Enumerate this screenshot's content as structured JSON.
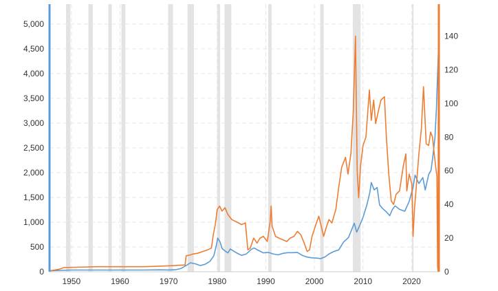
{
  "chart_data": {
    "type": "line",
    "title": "",
    "xlabel": "",
    "ylabel_left": "",
    "ylabel_right": "",
    "xlim": [
      1945.5,
      2025.6
    ],
    "ylim_left": [
      0,
      5400
    ],
    "ylim_right": [
      0,
      159
    ],
    "grid": true,
    "legend": "none",
    "x_ticks": [
      {
        "value": 1950,
        "label": "1950"
      },
      {
        "value": 1960,
        "label": "1960"
      },
      {
        "value": 1970,
        "label": "1970"
      },
      {
        "value": 1980,
        "label": "1980"
      },
      {
        "value": 1990,
        "label": "1990"
      },
      {
        "value": 2000,
        "label": "2000"
      },
      {
        "value": 2010,
        "label": "2010"
      },
      {
        "value": 2020,
        "label": "2020"
      }
    ],
    "y_left_ticks": [
      {
        "value": 0,
        "label": "0"
      },
      {
        "value": 500,
        "label": "500"
      },
      {
        "value": 1000,
        "label": "1,000"
      },
      {
        "value": 1500,
        "label": "1,500"
      },
      {
        "value": 2000,
        "label": "2,000"
      },
      {
        "value": 2500,
        "label": "2,500"
      },
      {
        "value": 3000,
        "label": "3,000"
      },
      {
        "value": 3500,
        "label": "3,500"
      },
      {
        "value": 4000,
        "label": "4,000"
      },
      {
        "value": 4500,
        "label": "4,500"
      },
      {
        "value": 5000,
        "label": "5,000"
      }
    ],
    "y_right_ticks": [
      {
        "value": 0,
        "label": "0"
      },
      {
        "value": 20,
        "label": "20"
      },
      {
        "value": 40,
        "label": "40"
      },
      {
        "value": 60,
        "label": "60"
      },
      {
        "value": 80,
        "label": "80"
      },
      {
        "value": 100,
        "label": "100"
      },
      {
        "value": 120,
        "label": "120"
      },
      {
        "value": 140,
        "label": "140"
      }
    ],
    "recessions": [
      [
        1948.9,
        1949.8
      ],
      [
        1953.5,
        1954.4
      ],
      [
        1957.6,
        1958.3
      ],
      [
        1960.3,
        1961.1
      ],
      [
        1969.9,
        1970.9
      ],
      [
        1973.9,
        1975.2
      ],
      [
        1980.0,
        1980.6
      ],
      [
        1981.5,
        1982.9
      ],
      [
        1990.5,
        1991.2
      ],
      [
        2001.2,
        2001.9
      ],
      [
        2007.9,
        2009.5
      ],
      [
        2020.1,
        2020.4
      ]
    ],
    "series": [
      {
        "axis": "left",
        "color": "#5b9bd5",
        "points": [
          [
            1945.5,
            20
          ],
          [
            1950,
            35
          ],
          [
            1955,
            35
          ],
          [
            1960,
            35
          ],
          [
            1965,
            35
          ],
          [
            1968,
            39
          ],
          [
            1970,
            36
          ],
          [
            1971.5,
            42
          ],
          [
            1972.5,
            64
          ],
          [
            1973.5,
            120
          ],
          [
            1974.5,
            180
          ],
          [
            1975.5,
            160
          ],
          [
            1976.5,
            125
          ],
          [
            1977.5,
            150
          ],
          [
            1978.5,
            210
          ],
          [
            1979.3,
            320
          ],
          [
            1979.8,
            520
          ],
          [
            1980.1,
            680
          ],
          [
            1980.6,
            600
          ],
          [
            1981,
            470
          ],
          [
            1981.6,
            420
          ],
          [
            1982.2,
            380
          ],
          [
            1982.7,
            460
          ],
          [
            1983.3,
            420
          ],
          [
            1984,
            380
          ],
          [
            1985,
            330
          ],
          [
            1986,
            360
          ],
          [
            1987,
            450
          ],
          [
            1987.6,
            480
          ],
          [
            1988.5,
            430
          ],
          [
            1989.5,
            380
          ],
          [
            1990.5,
            390
          ],
          [
            1991.5,
            360
          ],
          [
            1992.5,
            340
          ],
          [
            1993.5,
            370
          ],
          [
            1994.5,
            385
          ],
          [
            1995.5,
            385
          ],
          [
            1996.5,
            390
          ],
          [
            1997.5,
            330
          ],
          [
            1998.5,
            295
          ],
          [
            1999.5,
            280
          ],
          [
            2000.5,
            275
          ],
          [
            2001.3,
            265
          ],
          [
            2002.2,
            300
          ],
          [
            2003,
            360
          ],
          [
            2004,
            410
          ],
          [
            2005,
            440
          ],
          [
            2006,
            600
          ],
          [
            2007,
            690
          ],
          [
            2007.8,
            880
          ],
          [
            2008.2,
            980
          ],
          [
            2008.7,
            800
          ],
          [
            2009.3,
            930
          ],
          [
            2010,
            1100
          ],
          [
            2010.8,
            1350
          ],
          [
            2011.4,
            1600
          ],
          [
            2011.7,
            1800
          ],
          [
            2012.3,
            1650
          ],
          [
            2012.9,
            1700
          ],
          [
            2013.4,
            1350
          ],
          [
            2014,
            1280
          ],
          [
            2014.9,
            1200
          ],
          [
            2015.5,
            1130
          ],
          [
            2016,
            1250
          ],
          [
            2016.6,
            1330
          ],
          [
            2017.5,
            1260
          ],
          [
            2018.6,
            1220
          ],
          [
            2019.5,
            1420
          ],
          [
            2020.3,
            1700
          ],
          [
            2020.7,
            1950
          ],
          [
            2021.5,
            1780
          ],
          [
            2022.3,
            1900
          ],
          [
            2022.8,
            1650
          ],
          [
            2023.5,
            1960
          ],
          [
            2024,
            2050
          ],
          [
            2024.4,
            2350
          ],
          [
            2024.8,
            2700
          ],
          [
            2025.1,
            3300
          ],
          [
            2025.35,
            4000
          ],
          [
            2025.6,
            4700
          ]
        ]
      },
      {
        "axis": "right",
        "color": "#ed7d31",
        "points": [
          [
            1945.5,
            0.5
          ],
          [
            1946.5,
            1
          ],
          [
            1947.5,
            1.5
          ],
          [
            1948.5,
            2.5
          ],
          [
            1955,
            3
          ],
          [
            1965,
            3
          ],
          [
            1970,
            3.5
          ],
          [
            1973.4,
            4
          ],
          [
            1973.6,
            9.5
          ],
          [
            1974.5,
            10
          ],
          [
            1975,
            10.5
          ],
          [
            1976,
            11
          ],
          [
            1977,
            12
          ],
          [
            1978,
            13
          ],
          [
            1978.8,
            14
          ],
          [
            1979.2,
            22
          ],
          [
            1979.6,
            28
          ],
          [
            1980,
            37
          ],
          [
            1980.5,
            39
          ],
          [
            1981,
            36
          ],
          [
            1981.6,
            38
          ],
          [
            1982.2,
            34
          ],
          [
            1983,
            31
          ],
          [
            1983.7,
            30
          ],
          [
            1984.4,
            29
          ],
          [
            1985,
            28
          ],
          [
            1985.8,
            29
          ],
          [
            1986.3,
            13
          ],
          [
            1986.8,
            14
          ],
          [
            1987.5,
            20
          ],
          [
            1988.2,
            17
          ],
          [
            1988.8,
            20
          ],
          [
            1989.5,
            21
          ],
          [
            1990.3,
            18
          ],
          [
            1990.9,
            30
          ],
          [
            1991.1,
            39
          ],
          [
            1991.3,
            27
          ],
          [
            1992,
            21
          ],
          [
            1992.7,
            20
          ],
          [
            1993.5,
            19
          ],
          [
            1994.3,
            18
          ],
          [
            1995,
            20
          ],
          [
            1995.8,
            21
          ],
          [
            1996.5,
            24
          ],
          [
            1997.2,
            22
          ],
          [
            1997.9,
            17
          ],
          [
            1998.5,
            12
          ],
          [
            1999,
            13
          ],
          [
            1999.5,
            21
          ],
          [
            2000.3,
            28
          ],
          [
            2000.9,
            33
          ],
          [
            2001.4,
            27
          ],
          [
            2001.9,
            21
          ],
          [
            2002.5,
            27
          ],
          [
            2003,
            31
          ],
          [
            2003.6,
            29
          ],
          [
            2004.4,
            37
          ],
          [
            2005,
            50
          ],
          [
            2005.6,
            62
          ],
          [
            2006.4,
            68
          ],
          [
            2006.9,
            58
          ],
          [
            2007.5,
            70
          ],
          [
            2008,
            95
          ],
          [
            2008.45,
            140
          ],
          [
            2008.8,
            60
          ],
          [
            2009.1,
            44
          ],
          [
            2009.5,
            63
          ],
          [
            2010,
            75
          ],
          [
            2010.6,
            80
          ],
          [
            2011.3,
            108
          ],
          [
            2011.7,
            90
          ],
          [
            2012.2,
            102
          ],
          [
            2012.6,
            88
          ],
          [
            2013.2,
            96
          ],
          [
            2013.7,
            102
          ],
          [
            2014.4,
            104
          ],
          [
            2014.8,
            80
          ],
          [
            2015.3,
            58
          ],
          [
            2015.8,
            42
          ],
          [
            2016.3,
            40
          ],
          [
            2016.8,
            46
          ],
          [
            2017.5,
            48
          ],
          [
            2018.3,
            63
          ],
          [
            2018.8,
            70
          ],
          [
            2019,
            48
          ],
          [
            2019.5,
            58
          ],
          [
            2020.05,
            52
          ],
          [
            2020.3,
            21
          ],
          [
            2020.6,
            38
          ],
          [
            2021,
            52
          ],
          [
            2021.5,
            70
          ],
          [
            2022,
            85
          ],
          [
            2022.45,
            110
          ],
          [
            2022.8,
            88
          ],
          [
            2023,
            76
          ],
          [
            2023.5,
            75
          ],
          [
            2023.9,
            83
          ],
          [
            2024.3,
            80
          ],
          [
            2024.7,
            69
          ],
          [
            2025.0,
            61
          ],
          [
            2025.2,
            57
          ],
          [
            2025.35,
            3
          ],
          [
            2025.45,
            0
          ],
          [
            2025.52,
            159
          ]
        ]
      }
    ]
  }
}
